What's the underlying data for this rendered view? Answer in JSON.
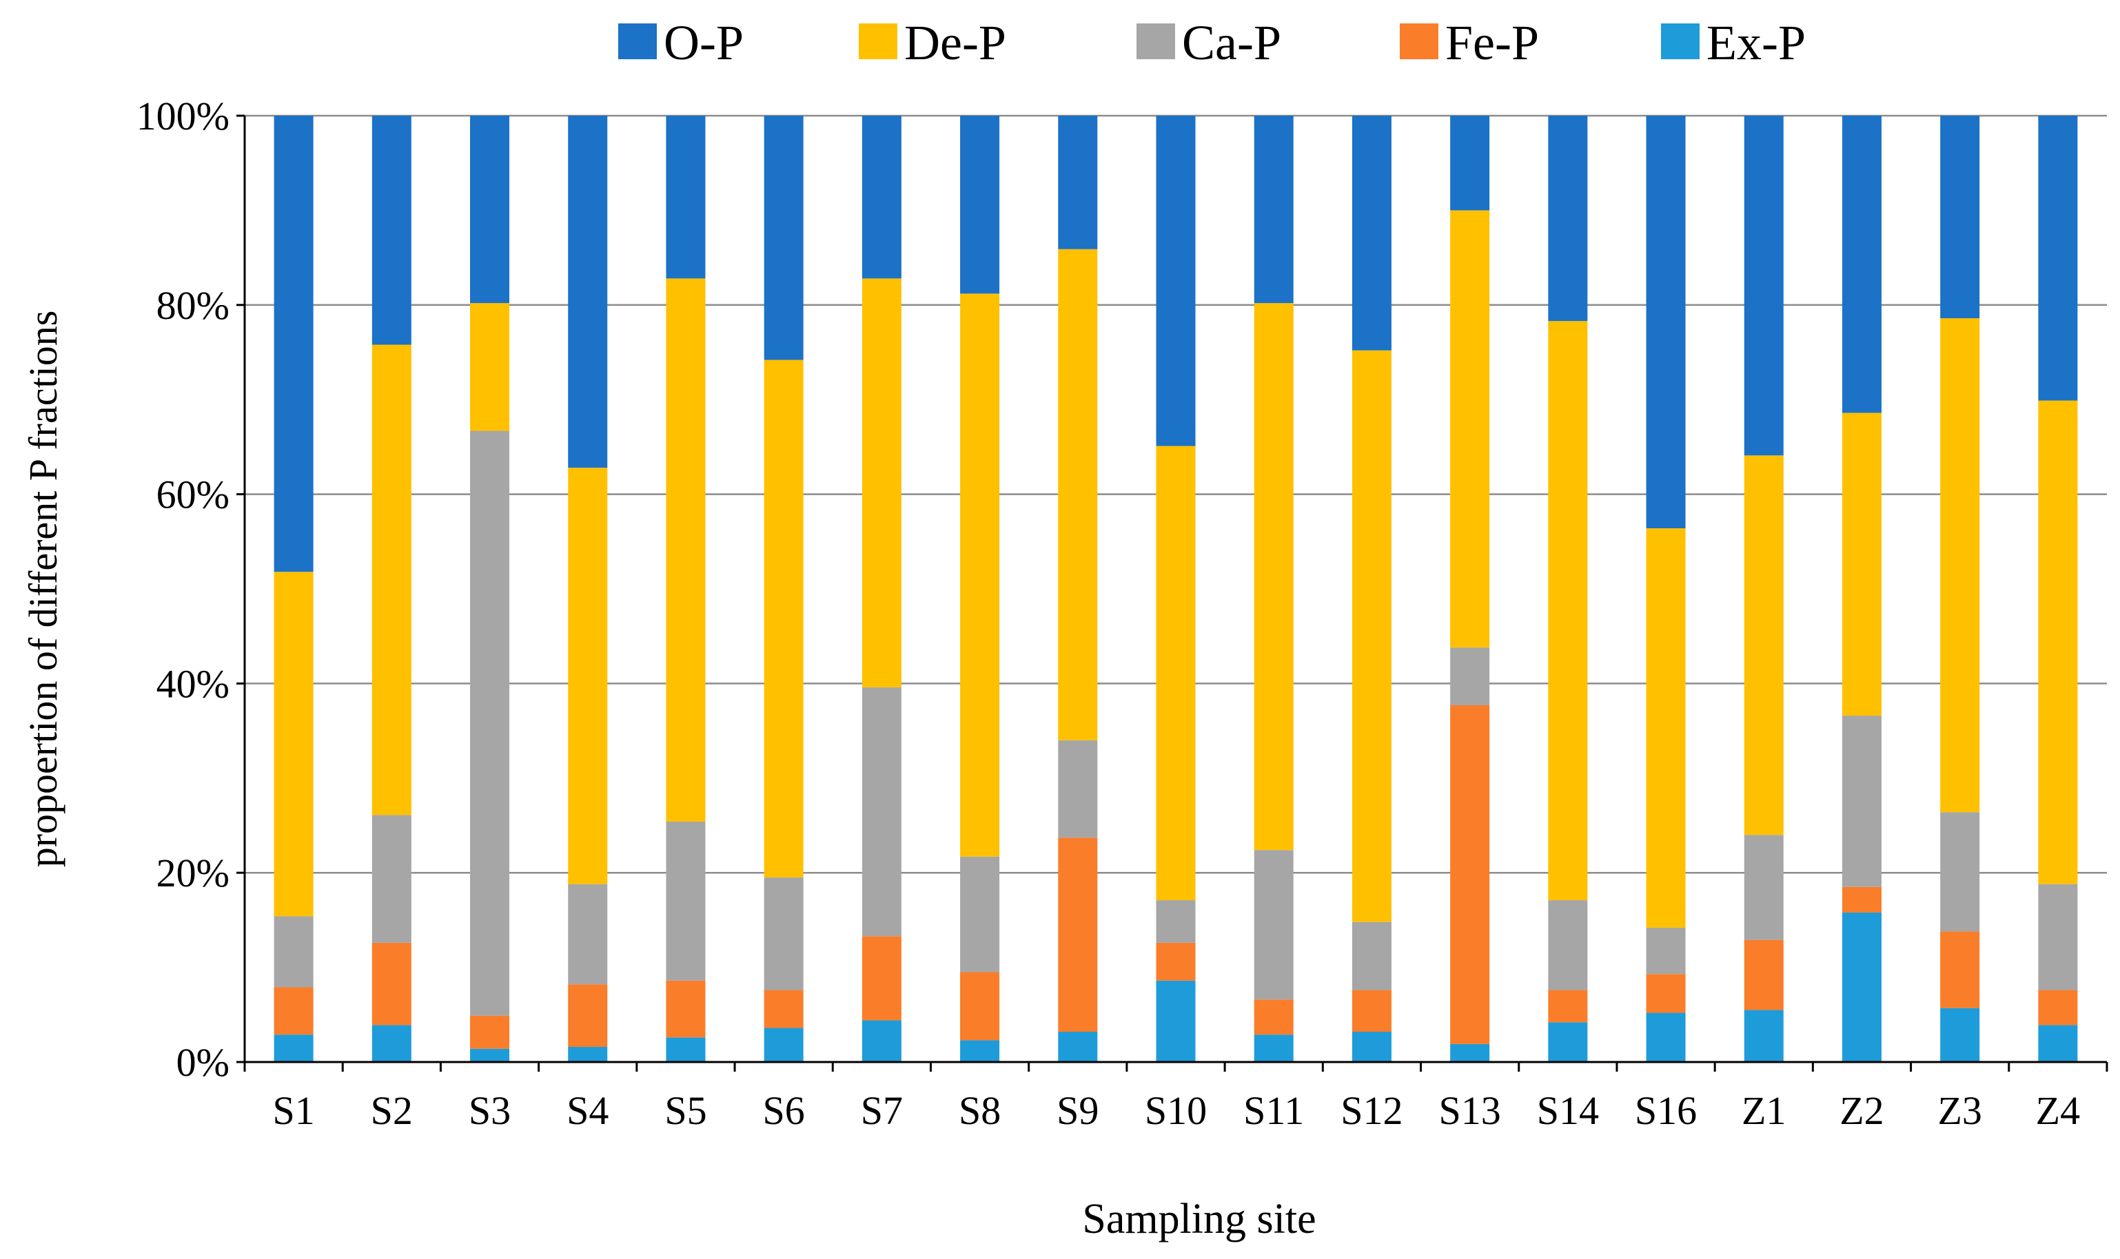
{
  "chart_data": {
    "type": "bar",
    "stacked": true,
    "title": "",
    "xlabel": "Sampling site",
    "ylabel": "propoertion of different P fractions",
    "ylim": [
      0,
      100
    ],
    "yticks": [
      "0%",
      "20%",
      "40%",
      "60%",
      "80%",
      "100%"
    ],
    "grid": true,
    "legend_position": "top",
    "categories": [
      "S1",
      "S2",
      "S3",
      "S4",
      "S5",
      "S6",
      "S7",
      "S8",
      "S9",
      "S10",
      "S11",
      "S12",
      "S13",
      "S14",
      "S16",
      "Z1",
      "Z2",
      "Z3",
      "Z4"
    ],
    "series": [
      {
        "name": "Ex-P",
        "color": "#1E9CD9",
        "values": [
          2.9,
          3.9,
          1.4,
          1.6,
          2.6,
          3.6,
          4.4,
          2.3,
          3.2,
          8.6,
          2.9,
          3.2,
          1.9,
          4.2,
          5.2,
          5.5,
          15.8,
          5.7,
          3.9
        ]
      },
      {
        "name": "Fe-P",
        "color": "#FA7D2A",
        "values": [
          5.0,
          8.7,
          3.5,
          6.6,
          6.0,
          4.0,
          8.9,
          7.2,
          20.5,
          4.0,
          3.7,
          4.4,
          35.8,
          3.4,
          4.1,
          7.4,
          2.7,
          8.1,
          3.7
        ]
      },
      {
        "name": "Ca-P",
        "color": "#A6A6A6",
        "values": [
          7.5,
          13.5,
          61.8,
          10.6,
          16.8,
          11.9,
          26.3,
          12.2,
          10.3,
          4.5,
          15.8,
          7.2,
          6.1,
          9.5,
          4.9,
          11.1,
          18.1,
          12.6,
          11.2
        ]
      },
      {
        "name": "De-P",
        "color": "#FFC000",
        "values": [
          36.4,
          49.7,
          13.5,
          44.0,
          57.4,
          54.7,
          43.2,
          59.5,
          51.9,
          48.0,
          57.8,
          60.4,
          46.2,
          61.2,
          42.2,
          40.1,
          32.0,
          52.2,
          51.1
        ]
      },
      {
        "name": "O-P",
        "color": "#1C72C6",
        "values": [
          48.2,
          24.2,
          19.8,
          37.2,
          17.2,
          25.8,
          17.2,
          18.8,
          14.1,
          34.9,
          19.8,
          24.8,
          10.0,
          21.7,
          43.6,
          35.9,
          31.4,
          21.4,
          30.1
        ]
      }
    ],
    "legend_order": [
      "O-P",
      "De-P",
      "Ca-P",
      "Fe-P",
      "Ex-P"
    ]
  }
}
